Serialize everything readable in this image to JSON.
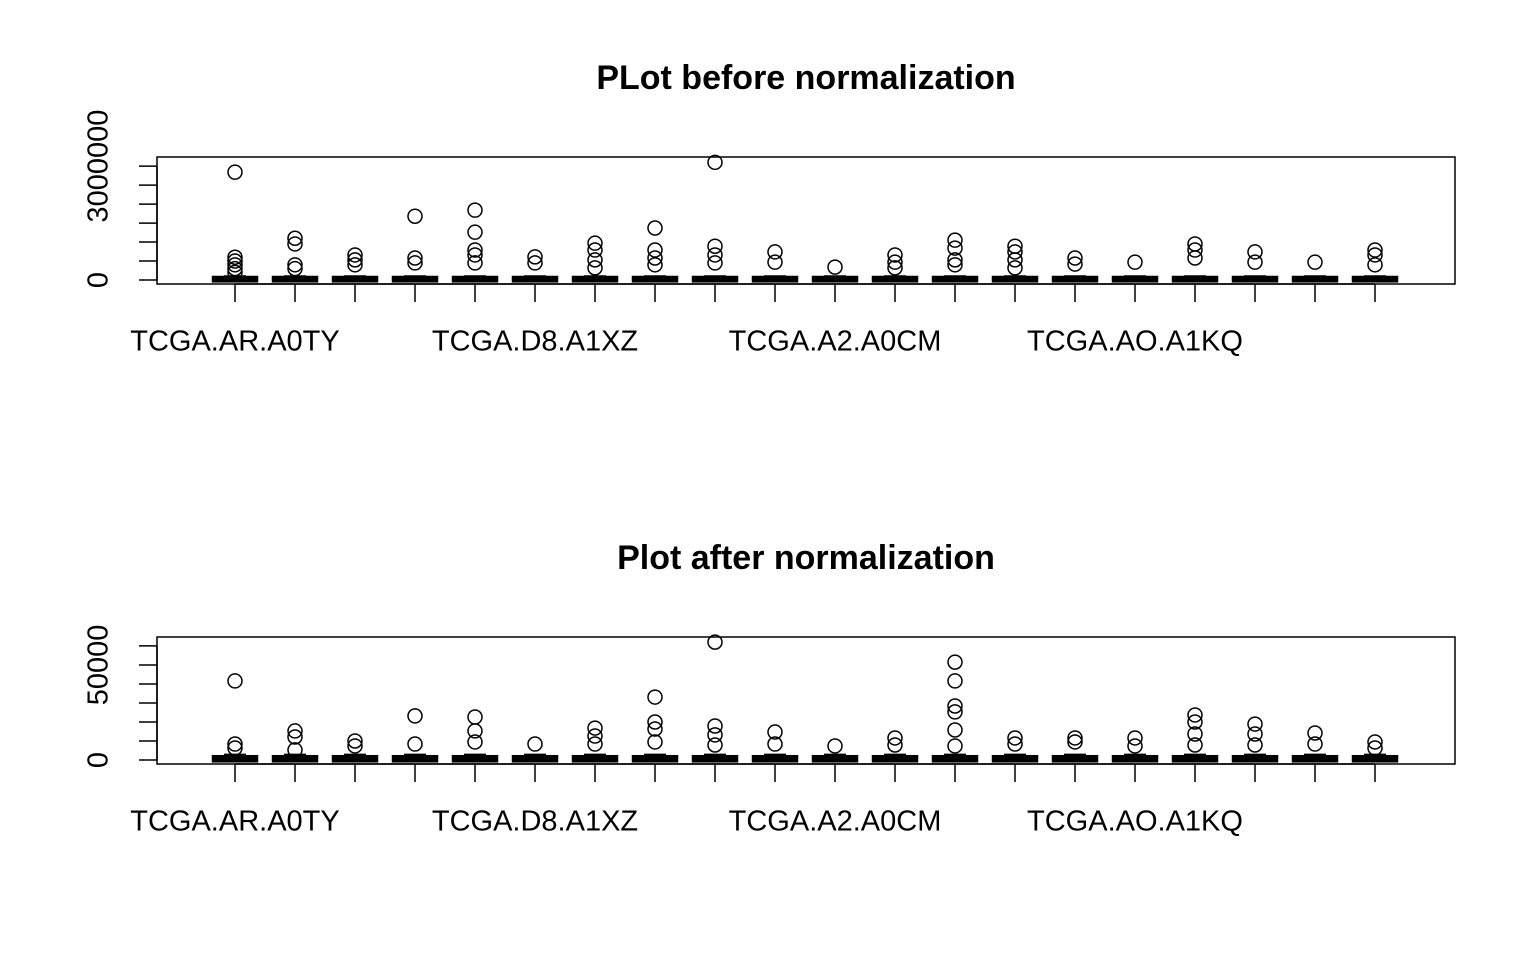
{
  "chart_data": [
    {
      "type": "box",
      "title": "PLot before normalization",
      "categories": [
        "TCGA.AR.A0TY",
        null,
        null,
        null,
        null,
        "TCGA.D8.A1XZ",
        null,
        null,
        null,
        null,
        "TCGA.A2.A0CM",
        null,
        null,
        null,
        null,
        "TCGA.AO.A1KQ",
        null,
        null,
        null,
        null
      ],
      "ylim": [
        -105000,
        3240000
      ],
      "yticks": [
        0,
        {
          "value": 500000,
          "label": null
        },
        {
          "value": 1000000,
          "label": null
        },
        {
          "value": 1500000,
          "label": null
        },
        {
          "value": 2000000,
          "label": null
        },
        {
          "value": 2500000,
          "label": null
        },
        3000000
      ],
      "color": "#000000",
      "boxes": [
        {
          "low": 0,
          "q1": 5000,
          "median": 15000,
          "q3": 40000,
          "high": 100000,
          "outliers": [
            2840000,
            600000,
            500000,
            400000,
            300000,
            200000
          ]
        },
        {
          "low": 0,
          "q1": 5000,
          "median": 15000,
          "q3": 40000,
          "high": 100000,
          "outliers": [
            1100000,
            950000,
            400000,
            300000
          ]
        },
        {
          "low": 0,
          "q1": 5000,
          "median": 15000,
          "q3": 40000,
          "high": 100000,
          "outliers": [
            660000,
            530000,
            400000
          ]
        },
        {
          "low": 0,
          "q1": 5000,
          "median": 15000,
          "q3": 40000,
          "high": 100000,
          "outliers": [
            1680000,
            580000,
            450000
          ]
        },
        {
          "low": 0,
          "q1": 5000,
          "median": 15000,
          "q3": 40000,
          "high": 100000,
          "outliers": [
            1840000,
            1260000,
            790000,
            660000,
            450000
          ]
        },
        {
          "low": 0,
          "q1": 5000,
          "median": 15000,
          "q3": 40000,
          "high": 100000,
          "outliers": [
            610000,
            450000
          ]
        },
        {
          "low": 0,
          "q1": 5000,
          "median": 15000,
          "q3": 40000,
          "high": 100000,
          "outliers": [
            970000,
            790000,
            530000,
            320000
          ]
        },
        {
          "low": 0,
          "q1": 5000,
          "median": 15000,
          "q3": 40000,
          "high": 100000,
          "outliers": [
            1370000,
            790000,
            580000,
            400000
          ]
        },
        {
          "low": 0,
          "q1": 5000,
          "median": 15000,
          "q3": 40000,
          "high": 100000,
          "outliers": [
            3100000,
            890000,
            660000,
            450000
          ]
        },
        {
          "low": 0,
          "q1": 5000,
          "median": 15000,
          "q3": 40000,
          "high": 100000,
          "outliers": [
            740000,
            470000
          ]
        },
        {
          "low": 0,
          "q1": 5000,
          "median": 15000,
          "q3": 40000,
          "high": 100000,
          "outliers": [
            340000
          ]
        },
        {
          "low": 0,
          "q1": 5000,
          "median": 15000,
          "q3": 40000,
          "high": 100000,
          "outliers": [
            660000,
            470000,
            320000
          ]
        },
        {
          "low": 0,
          "q1": 5000,
          "median": 15000,
          "q3": 40000,
          "high": 100000,
          "outliers": [
            1050000,
            840000,
            530000,
            400000
          ]
        },
        {
          "low": 0,
          "q1": 5000,
          "median": 15000,
          "q3": 40000,
          "high": 100000,
          "outliers": [
            890000,
            740000,
            530000,
            320000
          ]
        },
        {
          "low": 0,
          "q1": 5000,
          "median": 15000,
          "q3": 40000,
          "high": 100000,
          "outliers": [
            580000,
            420000
          ]
        },
        {
          "low": 0,
          "q1": 5000,
          "median": 15000,
          "q3": 40000,
          "high": 100000,
          "outliers": [
            470000
          ]
        },
        {
          "low": 0,
          "q1": 5000,
          "median": 15000,
          "q3": 40000,
          "high": 100000,
          "outliers": [
            950000,
            790000,
            580000
          ]
        },
        {
          "low": 0,
          "q1": 5000,
          "median": 15000,
          "q3": 40000,
          "high": 100000,
          "outliers": [
            740000,
            470000
          ]
        },
        {
          "low": 0,
          "q1": 5000,
          "median": 15000,
          "q3": 40000,
          "high": 100000,
          "outliers": [
            470000
          ]
        },
        {
          "low": 0,
          "q1": 5000,
          "median": 15000,
          "q3": 40000,
          "high": 100000,
          "outliers": [
            790000,
            660000,
            400000
          ]
        }
      ]
    },
    {
      "type": "box",
      "title": "Plot after normalization",
      "categories": [
        "TCGA.AR.A0TY",
        null,
        null,
        null,
        null,
        "TCGA.D8.A1XZ",
        null,
        null,
        null,
        null,
        "TCGA.A2.A0CM",
        null,
        null,
        null,
        null,
        "TCGA.AO.A1KQ",
        null,
        null,
        null,
        null
      ],
      "ylim": [
        -2100,
        64700
      ],
      "yticks": [
        0,
        {
          "value": 10000,
          "label": null
        },
        {
          "value": 20000,
          "label": null
        },
        {
          "value": 30000,
          "label": null
        },
        {
          "value": 40000,
          "label": null
        },
        50000,
        {
          "value": 60000,
          "label": null
        }
      ],
      "color": "#000000",
      "boxes": [
        {
          "low": 0,
          "q1": 100,
          "median": 400,
          "q3": 1200,
          "high": 2800,
          "outliers": [
            41600,
            8400,
            6300
          ]
        },
        {
          "low": 0,
          "q1": 100,
          "median": 400,
          "q3": 1200,
          "high": 2800,
          "outliers": [
            15300,
            12100,
            5300
          ]
        },
        {
          "low": 0,
          "q1": 100,
          "median": 400,
          "q3": 1200,
          "high": 2800,
          "outliers": [
            10000,
            7400
          ]
        },
        {
          "low": 0,
          "q1": 100,
          "median": 400,
          "q3": 1200,
          "high": 2800,
          "outliers": [
            23200,
            8400
          ]
        },
        {
          "low": 0,
          "q1": 100,
          "median": 400,
          "q3": 1200,
          "high": 2800,
          "outliers": [
            22600,
            15300,
            9500
          ]
        },
        {
          "low": 0,
          "q1": 100,
          "median": 400,
          "q3": 1200,
          "high": 2800,
          "outliers": [
            8400
          ]
        },
        {
          "low": 0,
          "q1": 100,
          "median": 400,
          "q3": 1200,
          "high": 2800,
          "outliers": [
            16800,
            12600,
            8400
          ]
        },
        {
          "low": 0,
          "q1": 100,
          "median": 400,
          "q3": 1200,
          "high": 2800,
          "outliers": [
            33100,
            20000,
            16300,
            9500
          ]
        },
        {
          "low": 0,
          "q1": 100,
          "median": 400,
          "q3": 1200,
          "high": 2800,
          "outliers": [
            62000,
            17900,
            13200,
            7900
          ]
        },
        {
          "low": 0,
          "q1": 100,
          "median": 400,
          "q3": 1200,
          "high": 2800,
          "outliers": [
            14700,
            8400
          ]
        },
        {
          "low": 0,
          "q1": 100,
          "median": 400,
          "q3": 1200,
          "high": 2800,
          "outliers": [
            7400
          ]
        },
        {
          "low": 0,
          "q1": 100,
          "median": 400,
          "q3": 1200,
          "high": 2800,
          "outliers": [
            11600,
            7900
          ]
        },
        {
          "low": 0,
          "q1": 100,
          "median": 400,
          "q3": 1200,
          "high": 2800,
          "outliers": [
            51500,
            41600,
            28400,
            25300,
            15800,
            7400
          ]
        },
        {
          "low": 0,
          "q1": 100,
          "median": 400,
          "q3": 1200,
          "high": 2800,
          "outliers": [
            11600,
            8400
          ]
        },
        {
          "low": 0,
          "q1": 100,
          "median": 400,
          "q3": 1200,
          "high": 2800,
          "outliers": [
            11600,
            9500
          ]
        },
        {
          "low": 0,
          "q1": 100,
          "median": 400,
          "q3": 1200,
          "high": 2800,
          "outliers": [
            11600,
            7400
          ]
        },
        {
          "low": 0,
          "q1": 100,
          "median": 400,
          "q3": 1200,
          "high": 2800,
          "outliers": [
            23700,
            20000,
            13700,
            7900
          ]
        },
        {
          "low": 0,
          "q1": 100,
          "median": 400,
          "q3": 1200,
          "high": 2800,
          "outliers": [
            18900,
            13700,
            7900
          ]
        },
        {
          "low": 0,
          "q1": 100,
          "median": 400,
          "q3": 1200,
          "high": 2800,
          "outliers": [
            14200,
            8400
          ]
        },
        {
          "low": 0,
          "q1": 100,
          "median": 400,
          "q3": 1200,
          "high": 2800,
          "outliers": [
            9500,
            6300
          ]
        }
      ]
    }
  ]
}
